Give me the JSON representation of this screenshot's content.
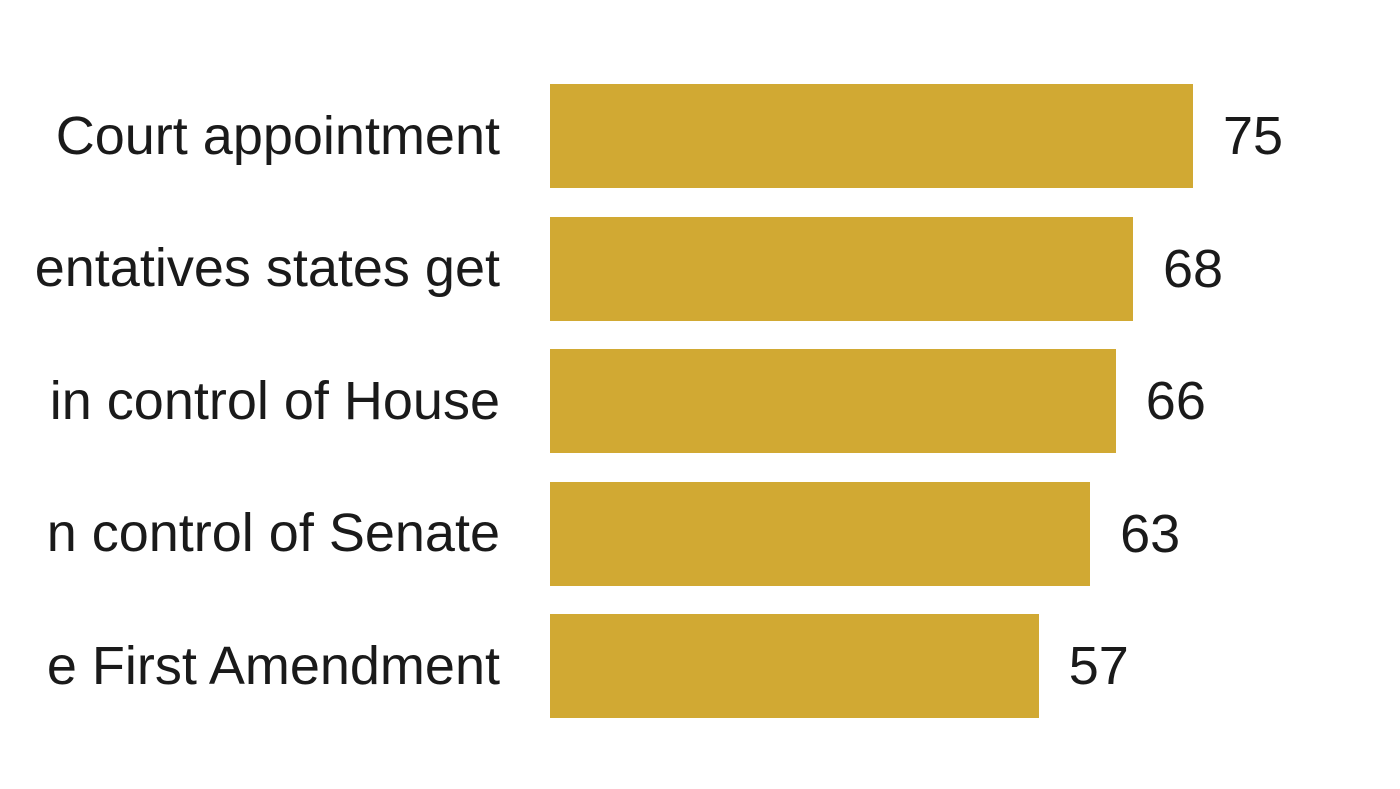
{
  "chart_data": {
    "type": "bar",
    "orientation": "horizontal",
    "title": "",
    "categories": [
      "Court appointment",
      "entatives states get",
      "in control of House",
      "n control of Senate",
      "e First Amendment"
    ],
    "values": [
      75,
      68,
      66,
      63,
      57
    ],
    "value_labels": [
      "75",
      "68",
      "66",
      "63",
      "57"
    ],
    "xlim": [
      0,
      82
    ],
    "grid": false,
    "legend_position": "none",
    "bar_color": "#D1A933",
    "text_color": "#1A1A1A",
    "background_color": "#FFFFFF"
  }
}
